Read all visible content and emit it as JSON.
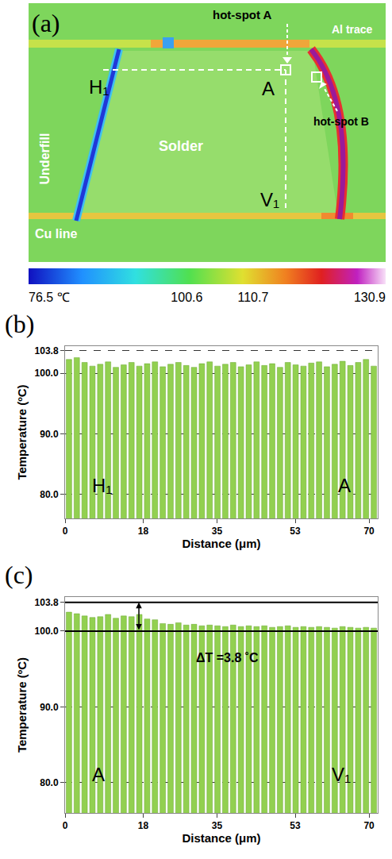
{
  "panel_a": {
    "panel_label": "(a)",
    "texts": {
      "hot_spot_a": "hot-spot A",
      "hot_spot_b": "hot-spot B",
      "al_trace": "Al trace",
      "h1": "H₁",
      "a": "A",
      "v1": "V₁",
      "solder": "Solder",
      "underfill": "Underfill",
      "cu_line": "Cu line"
    },
    "colorbar": {
      "range": [
        76.5,
        130.9
      ],
      "ticks": [
        {
          "value": 76.5,
          "label": "76.5 ℃"
        },
        100.6,
        110.7,
        130.9
      ]
    }
  },
  "chart_data": [
    {
      "type": "bar",
      "panel_label": "(b)",
      "x_label": "Distance (μm)",
      "y_label": "Temperature (ºC)",
      "annotations": [
        "H₁",
        "A"
      ],
      "color": "#92d050",
      "x": [
        0.9,
        2.7,
        4.5,
        6.3,
        8.1,
        9.9,
        11.7,
        13.5,
        15.3,
        17.1,
        18.9,
        20.7,
        22.5,
        24.3,
        26.1,
        27.9,
        29.7,
        31.5,
        33.3,
        35.1,
        36.9,
        38.7,
        40.5,
        42.3,
        44.1,
        45.9,
        47.7,
        49.5,
        51.3,
        53.1,
        54.9,
        56.7,
        58.5,
        60.3,
        62.1,
        63.9,
        65.7,
        67.5,
        69.3,
        71.1
      ],
      "values": [
        102.3,
        102.6,
        101.8,
        101.2,
        101.5,
        101.9,
        101.0,
        101.4,
        101.8,
        101.2,
        101.6,
        101.9,
        101.1,
        101.5,
        101.8,
        101.3,
        101.0,
        101.6,
        101.9,
        101.2,
        101.5,
        101.8,
        101.1,
        101.4,
        101.9,
        101.3,
        101.6,
        101.0,
        101.8,
        101.4,
        101.2,
        101.7,
        101.9,
        101.1,
        101.5,
        102.0,
        101.3,
        101.8,
        102.3,
        101.2
      ],
      "xlim": [
        0,
        72
      ],
      "xticks": [
        0,
        18,
        35,
        53,
        70
      ],
      "ylim": [
        76,
        104.5
      ],
      "yticks": [
        {
          "value": 80,
          "label": "80.0"
        },
        {
          "value": 90,
          "label": "90.0"
        },
        {
          "value": 100,
          "label": "100.0"
        },
        {
          "value": 103.8,
          "label": "103.8"
        }
      ],
      "grid": true
    },
    {
      "type": "bar",
      "panel_label": "(c)",
      "x_label": "Distance (μm)",
      "y_label": "Temperature (ºC)",
      "annotations": [
        "A",
        "V₁"
      ],
      "delta_label": "ΔT =3.8 ˚C",
      "reference_lines": [
        103.8,
        100.0
      ],
      "bracket": {
        "x": 17,
        "from": 100.0,
        "to": 103.8
      },
      "color": "#92d050",
      "x": [
        0.9,
        2.7,
        4.5,
        6.3,
        8.1,
        9.9,
        11.7,
        13.5,
        15.3,
        17.1,
        18.9,
        20.7,
        22.5,
        24.3,
        26.1,
        27.9,
        29.7,
        31.5,
        33.3,
        35.1,
        36.9,
        38.7,
        40.5,
        42.3,
        44.1,
        45.9,
        47.7,
        49.5,
        51.3,
        53.1,
        54.9,
        56.7,
        58.5,
        60.3,
        62.1,
        63.9,
        65.7,
        67.5,
        69.3,
        71.1
      ],
      "values": [
        102.5,
        102.3,
        102.0,
        101.8,
        101.9,
        102.2,
        101.7,
        102.0,
        101.9,
        102.2,
        101.6,
        101.5,
        101.0,
        100.9,
        101.1,
        100.8,
        100.9,
        100.7,
        100.8,
        100.7,
        100.6,
        100.8,
        100.6,
        100.7,
        100.6,
        100.7,
        100.5,
        100.6,
        100.7,
        100.5,
        100.6,
        100.5,
        100.6,
        100.5,
        100.4,
        100.6,
        100.5,
        100.4,
        100.5,
        100.4
      ],
      "xlim": [
        0,
        72
      ],
      "xticks": [
        0,
        18,
        35,
        53,
        70
      ],
      "ylim": [
        76,
        104.5
      ],
      "yticks": [
        {
          "value": 80,
          "label": "80.0"
        },
        {
          "value": 90,
          "label": "90.0"
        },
        {
          "value": 100,
          "label": "100.0"
        },
        {
          "value": 103.8,
          "label": "103.8"
        }
      ],
      "grid": true
    }
  ]
}
